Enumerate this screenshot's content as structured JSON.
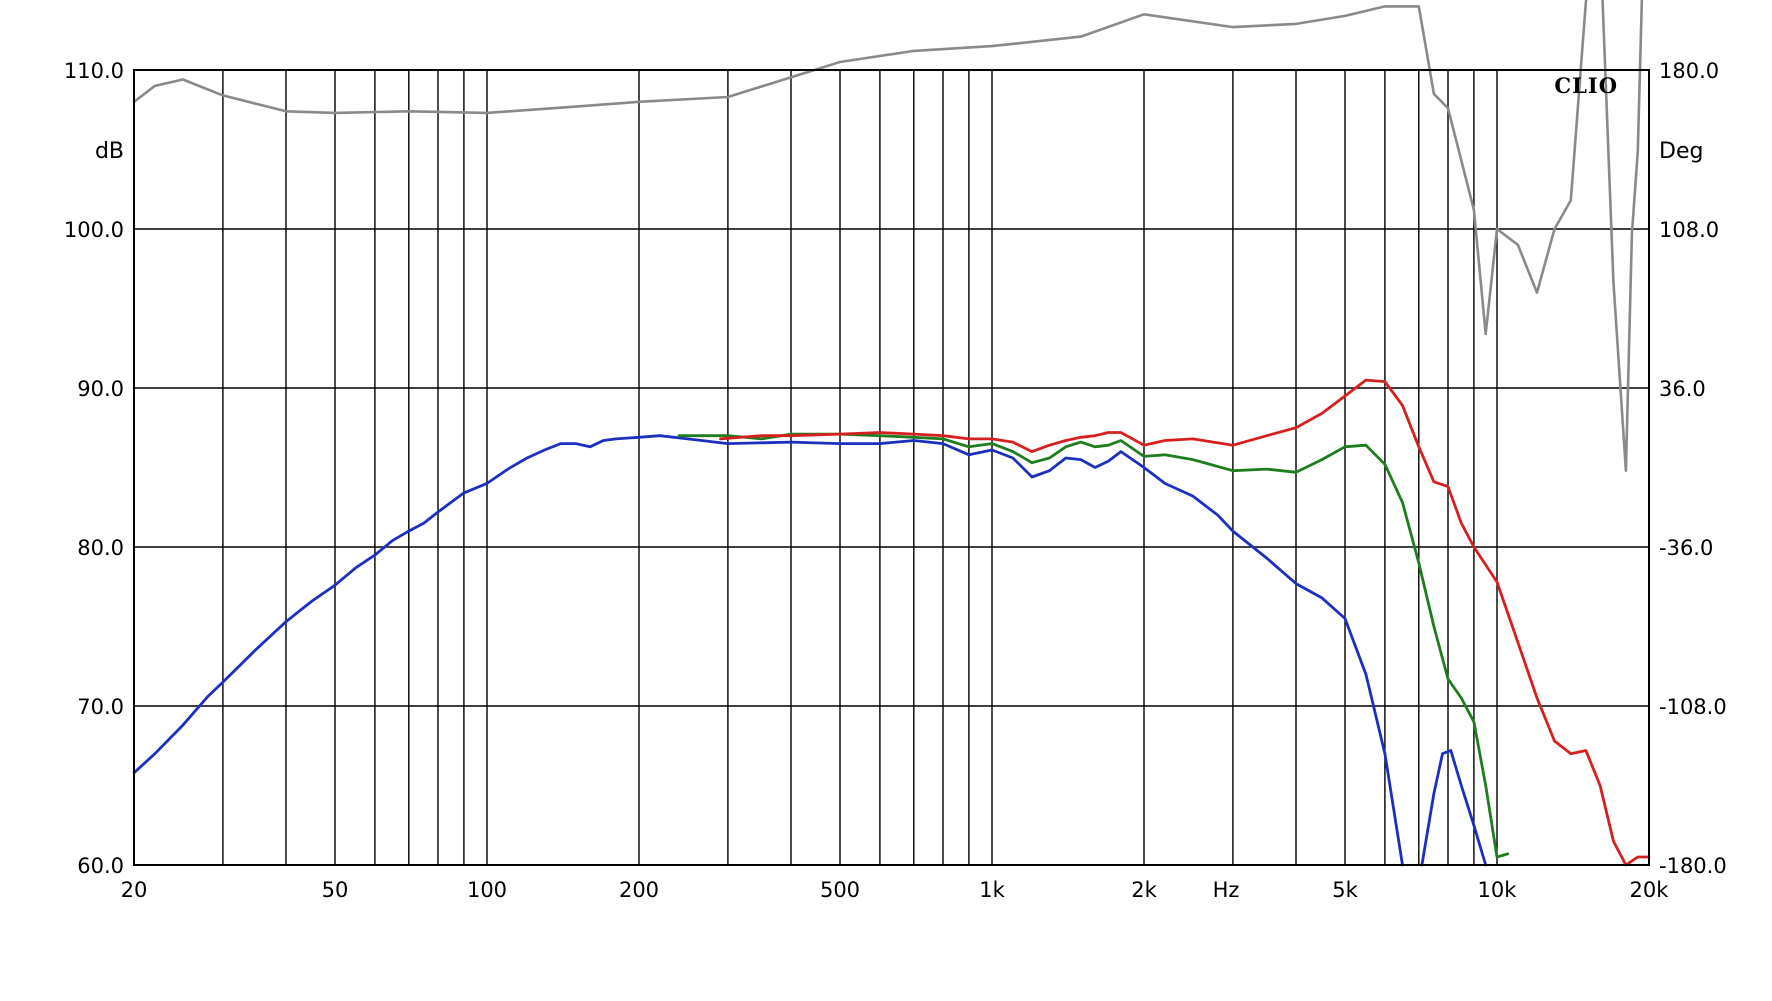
{
  "chart_data": {
    "type": "line",
    "title": "",
    "xlabel": "Hz",
    "ylabel": "dB",
    "y2label": "Deg",
    "logo": "CLIO",
    "x_scale": "log",
    "xlim": [
      20,
      20000
    ],
    "ylim": [
      60,
      110
    ],
    "y2lim": [
      -180,
      180
    ],
    "grid": true,
    "x_tick_labels": [
      {
        "value": 20,
        "label": "20"
      },
      {
        "value": 50,
        "label": "50"
      },
      {
        "value": 100,
        "label": "100"
      },
      {
        "value": 200,
        "label": "200"
      },
      {
        "value": 500,
        "label": "500"
      },
      {
        "value": 1000,
        "label": "1k"
      },
      {
        "value": 2000,
        "label": "2k"
      },
      {
        "value": 5000,
        "label": "5k"
      },
      {
        "value": 10000,
        "label": "10k"
      },
      {
        "value": 20000,
        "label": "20k"
      }
    ],
    "y_tick_labels": [
      "60.0",
      "70.0",
      "80.0",
      "90.0",
      "100.0",
      "110.0"
    ],
    "y2_tick_labels": [
      "-180.0",
      "-108.0",
      "-36.0",
      "36.0",
      "108.0",
      "180.0"
    ],
    "colors": {
      "blue": "#1d2fbf",
      "green": "#1e7d1e",
      "red": "#d62020",
      "gray": "#8a8a8a"
    },
    "series": [
      {
        "color": "blue",
        "x": [
          20,
          22,
          25,
          28,
          30,
          35,
          40,
          45,
          50,
          55,
          60,
          65,
          70,
          75,
          80,
          90,
          100,
          110,
          120,
          130,
          140,
          150,
          160,
          170,
          180,
          200,
          220,
          250,
          300,
          400,
          500,
          600,
          700,
          800,
          900,
          1000,
          1100,
          1200,
          1300,
          1400,
          1500,
          1600,
          1700,
          1800,
          2000,
          2200,
          2500,
          2800,
          3000,
          3500,
          4000,
          4500,
          5000,
          5500,
          6000,
          6500
        ],
        "y": [
          65.8,
          67,
          68.8,
          70.6,
          71.5,
          73.6,
          75.3,
          76.6,
          77.6,
          78.7,
          79.5,
          80.4,
          81.0,
          81.5,
          82.2,
          83.4,
          84.0,
          84.9,
          85.6,
          86.1,
          86.5,
          86.5,
          86.3,
          86.7,
          86.8,
          86.9,
          87.0,
          86.8,
          86.5,
          86.6,
          86.5,
          86.5,
          86.7,
          86.5,
          85.8,
          86.1,
          85.6,
          84.4,
          84.8,
          85.6,
          85.5,
          85.0,
          85.4,
          86.0,
          85.0,
          84.0,
          83.2,
          82.0,
          81.0,
          79.3,
          77.7,
          76.8,
          75.5,
          72.0,
          67.0,
          60.0
        ]
      },
      {
        "color": "blue",
        "x": [
          7100,
          7500,
          7800,
          8100,
          8500,
          9000,
          9500
        ],
        "y": [
          60.0,
          64.5,
          67.0,
          67.2,
          65.0,
          62.5,
          60.0
        ]
      },
      {
        "color": "green",
        "x": [
          240,
          300,
          350,
          400,
          500,
          600,
          700,
          800,
          900,
          1000,
          1100,
          1200,
          1300,
          1400,
          1500,
          1600,
          1700,
          1800,
          2000,
          2200,
          2500,
          3000,
          3500,
          4000,
          4500,
          5000,
          5500,
          6000,
          6500,
          7000,
          7500,
          8000,
          8500,
          9000,
          9500,
          10000,
          10500
        ],
        "y": [
          87.0,
          87.0,
          86.8,
          87.1,
          87.1,
          87.0,
          86.9,
          86.8,
          86.3,
          86.5,
          86.0,
          85.3,
          85.6,
          86.3,
          86.6,
          86.3,
          86.4,
          86.7,
          85.7,
          85.8,
          85.5,
          84.8,
          84.9,
          84.7,
          85.5,
          86.3,
          86.4,
          85.2,
          82.8,
          79.0,
          75.0,
          71.7,
          70.5,
          69.0,
          65.0,
          60.5,
          60.7
        ]
      },
      {
        "color": "red",
        "x": [
          290,
          350,
          400,
          500,
          600,
          700,
          800,
          900,
          1000,
          1100,
          1200,
          1300,
          1400,
          1500,
          1600,
          1700,
          1800,
          2000,
          2200,
          2500,
          3000,
          3500,
          4000,
          4500,
          5000,
          5500,
          6000,
          6500,
          7000,
          7500,
          8000,
          8500,
          9000,
          10000,
          11000,
          12000,
          13000,
          14000,
          15000,
          16000,
          17000,
          18000,
          19000,
          20000
        ],
        "y": [
          86.8,
          87.0,
          87.0,
          87.1,
          87.2,
          87.1,
          87.0,
          86.8,
          86.8,
          86.6,
          86.0,
          86.4,
          86.7,
          86.9,
          87.0,
          87.2,
          87.2,
          86.4,
          86.7,
          86.8,
          86.4,
          87.0,
          87.5,
          88.4,
          89.5,
          90.5,
          90.4,
          88.9,
          86.3,
          84.1,
          83.8,
          81.5,
          80.0,
          77.8,
          74.0,
          70.5,
          67.8,
          67.0,
          67.2,
          65.0,
          61.5,
          60.0,
          60.5,
          60.5
        ]
      },
      {
        "color": "gray",
        "x": [
          20,
          22,
          25,
          30,
          40,
          50,
          70,
          100,
          150,
          200,
          300,
          500,
          700,
          1000,
          1500,
          2000,
          3000,
          4000,
          5000,
          6000,
          7000,
          7500,
          8000,
          9000,
          9500,
          10000,
          11000,
          12000,
          13000,
          14000,
          15000,
          16000,
          17000,
          18000,
          18500,
          19000,
          20000
        ],
        "y": [
          108.0,
          109.0,
          109.4,
          108.4,
          107.4,
          107.3,
          107.4,
          107.3,
          107.7,
          108.0,
          108.3,
          110.5,
          111.2,
          111.5,
          112.1,
          113.5,
          112.7,
          112.9,
          113.4,
          114.0,
          114.0,
          108.5,
          107.6,
          101.2,
          93.4,
          100.0,
          99.0,
          96.0,
          100.0,
          101.8,
          114.3,
          118.4,
          96.7,
          84.8,
          99.7,
          104.9,
          131.2
        ]
      }
    ]
  }
}
